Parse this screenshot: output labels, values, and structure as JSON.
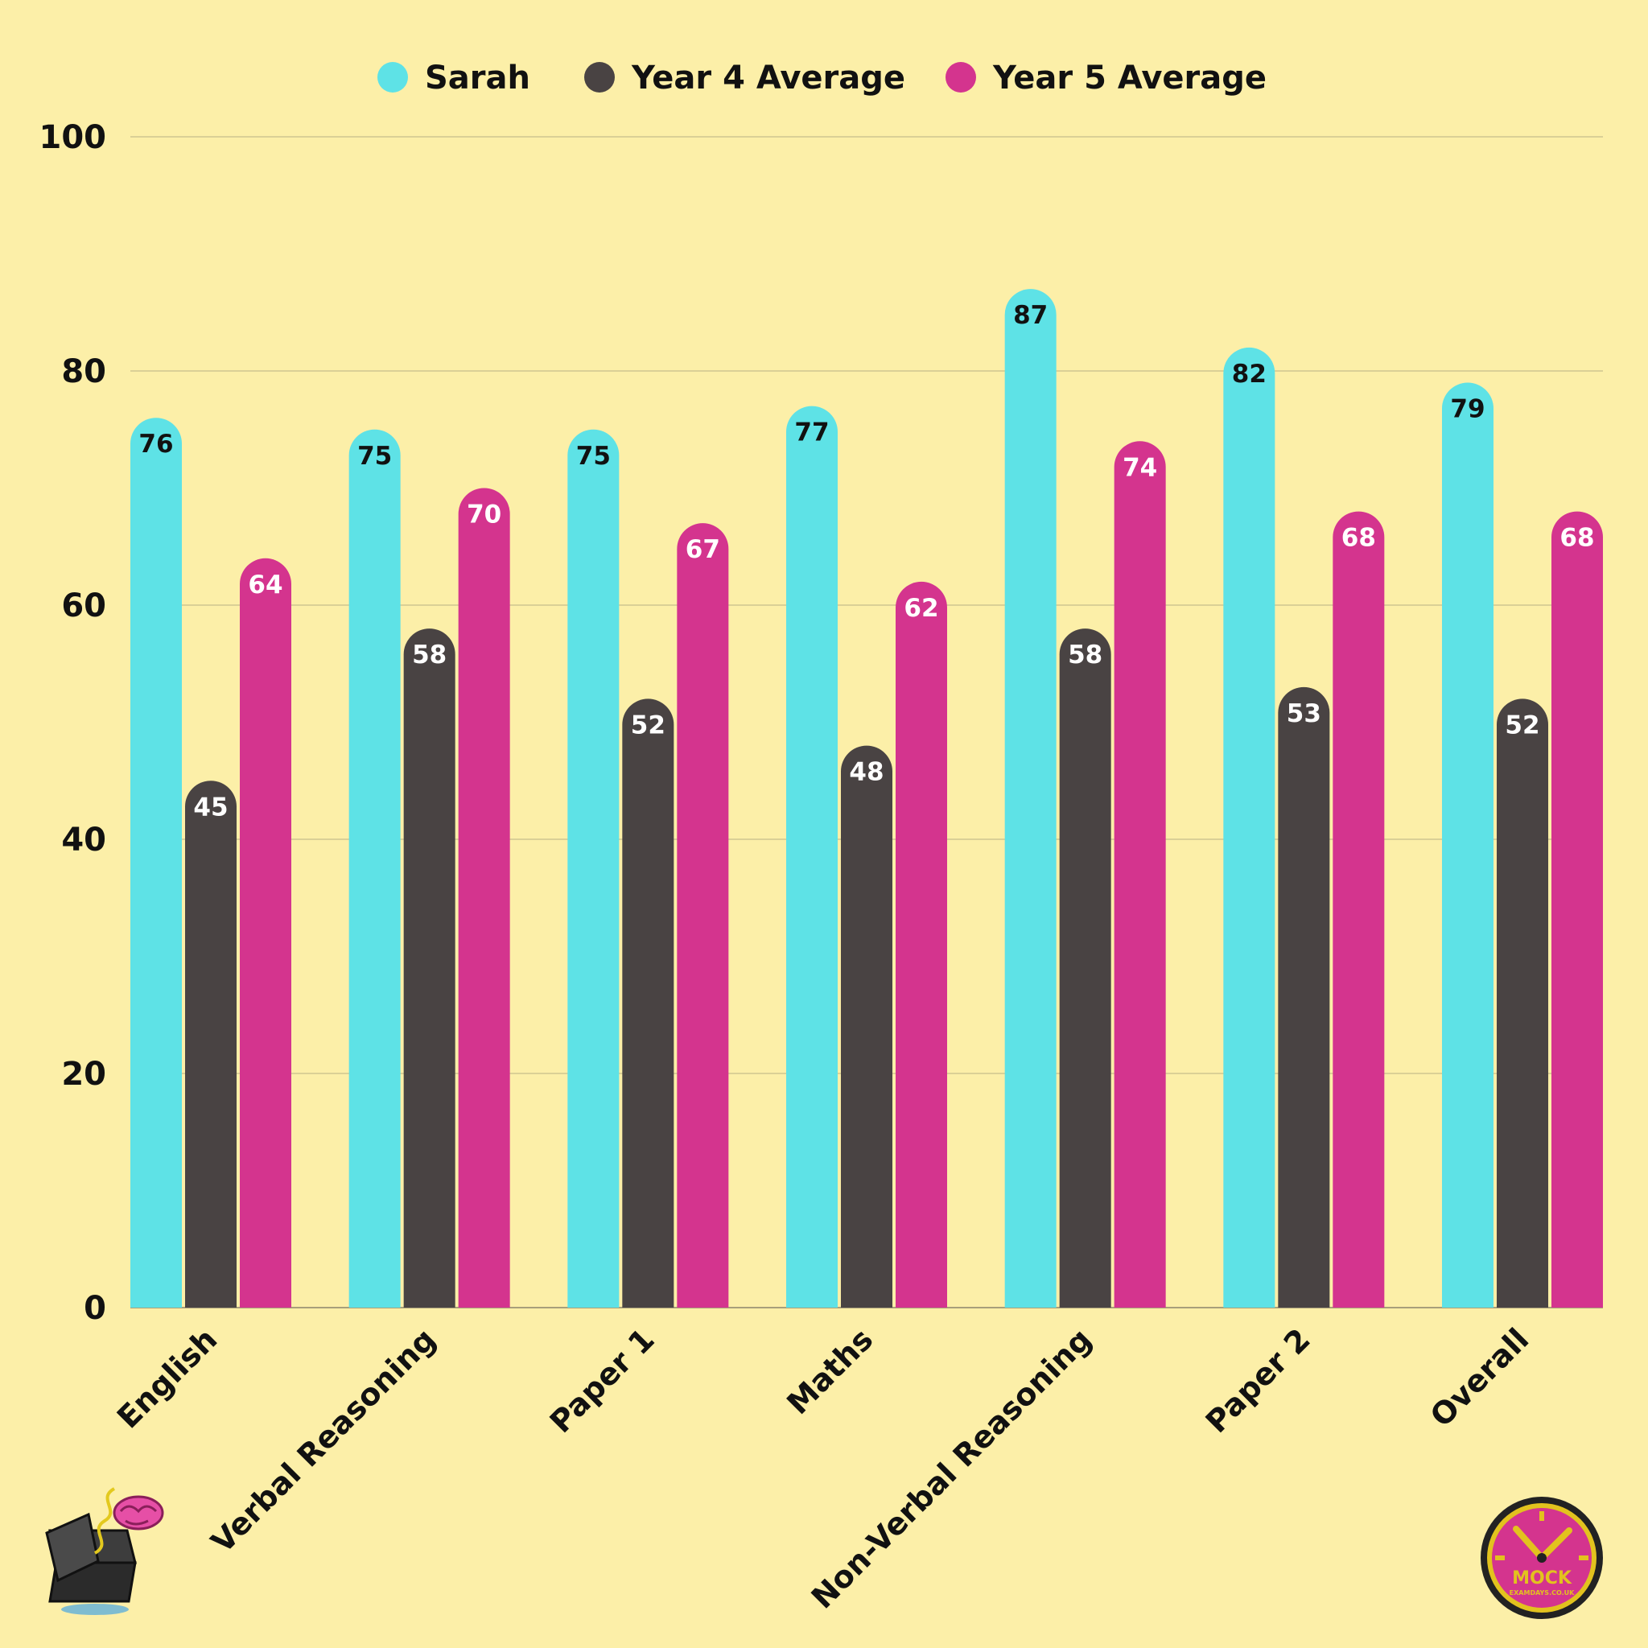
{
  "chart_data": {
    "type": "bar",
    "title": "",
    "xlabel": "",
    "ylabel": "",
    "ylim": [
      0,
      100
    ],
    "yticks": [
      0,
      20,
      40,
      60,
      80,
      100
    ],
    "grid": true,
    "legend_position": "top-center",
    "categories": [
      "English",
      "Verbal Reasoning",
      "Paper 1",
      "Maths",
      "Non-Verbal Reasoning",
      "Paper 2",
      "Overall"
    ],
    "series": [
      {
        "name": "Sarah",
        "color": "#5ee2e6",
        "label_color": "#111111",
        "values": [
          76,
          75,
          75,
          77,
          87,
          82,
          79
        ]
      },
      {
        "name": "Year 4 Average",
        "color": "#494343",
        "label_color": "#ffffff",
        "values": [
          45,
          58,
          52,
          48,
          58,
          53,
          52
        ]
      },
      {
        "name": "Year 5 Average",
        "color": "#d4348e",
        "label_color": "#ffffff",
        "values": [
          64,
          70,
          67,
          62,
          74,
          68,
          68
        ]
      }
    ]
  },
  "logos": {
    "left": {
      "icon": "brain-in-box-icon"
    },
    "right": {
      "icon": "clock-logo-icon",
      "text_main": "MOCK",
      "text_sub": "EXAMDAYS.CO.UK"
    }
  }
}
